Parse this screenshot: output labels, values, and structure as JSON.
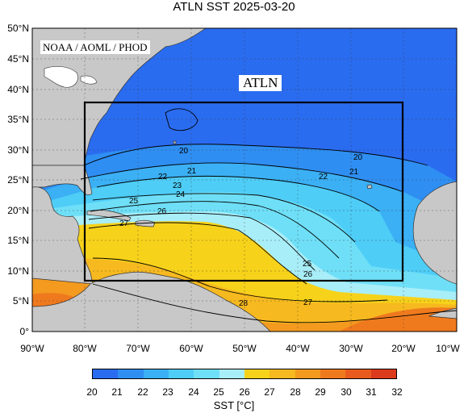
{
  "title": "ATLN SST  2025-03-20",
  "credit": "NOAA / AOML / PHOD",
  "region_label": "ATLN",
  "lat_labels": [
    "50°N",
    "45°N",
    "40°N",
    "35°N",
    "30°N",
    "25°N",
    "20°N",
    "15°N",
    "10°N",
    "5°N",
    "0°"
  ],
  "lon_labels": [
    "90°W",
    "80°W",
    "70°W",
    "60°W",
    "50°W",
    "40°W",
    "30°W",
    "20°W",
    "10°W"
  ],
  "contour_labels": [
    "20",
    "21",
    "22",
    "23",
    "24",
    "25",
    "26",
    "27",
    "28",
    "20",
    "21",
    "22",
    "25",
    "26",
    "27",
    "28"
  ],
  "colorbar": {
    "ticks": [
      "20",
      "21",
      "22",
      "23",
      "24",
      "25",
      "26",
      "27",
      "28",
      "29",
      "30",
      "31",
      "32"
    ],
    "label": "SST [°C]",
    "colors": [
      "#2a6cf0",
      "#2f8ef2",
      "#3bb0f5",
      "#4ecdf7",
      "#6fdff7",
      "#a8eef8",
      "#f7d21a",
      "#f6b91f",
      "#f39a1f",
      "#ef7a1e",
      "#e85a1e",
      "#dc3a1c"
    ]
  },
  "map_colors": {
    "land": "#c8c8c8",
    "ocean_cold": "#2a6cf0",
    "ocean_warm": "#f6b91f",
    "ocean_hot": "#ef7a1e"
  }
}
